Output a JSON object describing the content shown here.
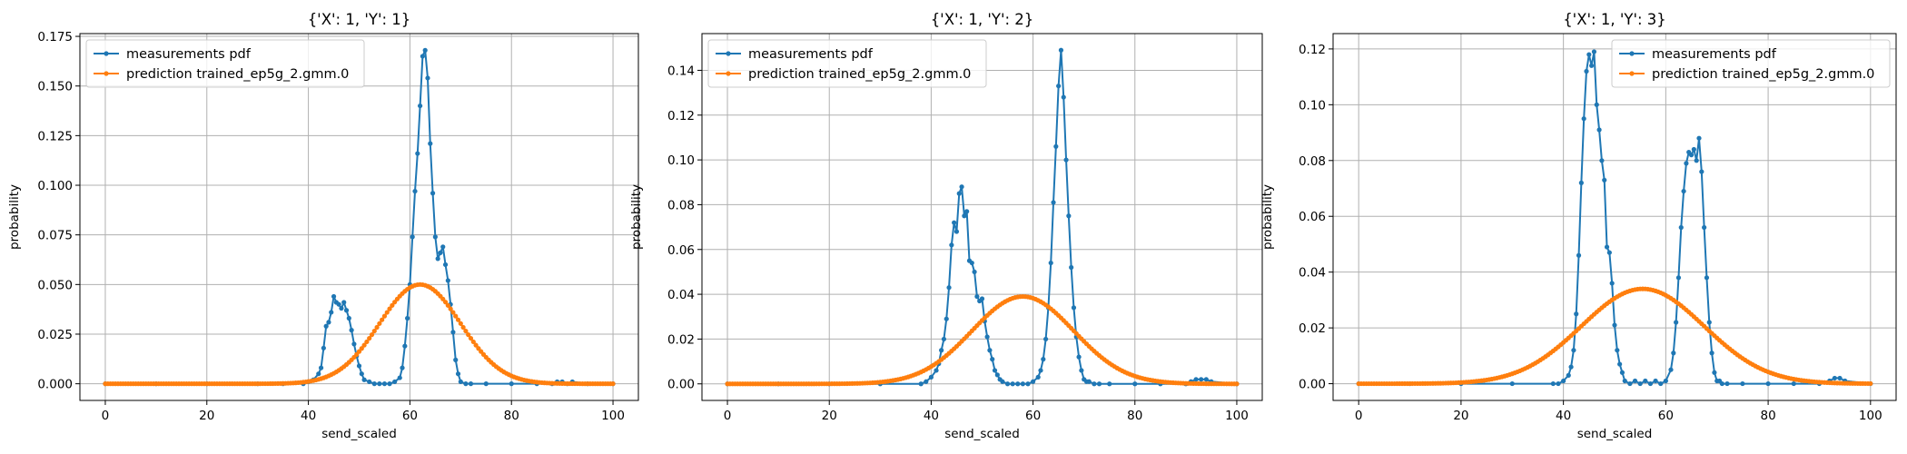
{
  "colors": {
    "measurements": "#1f77b4",
    "prediction": "#ff7f0e",
    "grid": "#b0b0b0"
  },
  "chart_data": [
    {
      "type": "line",
      "title": "{'X': 1, 'Y': 1}",
      "xlabel": "send_scaled",
      "ylabel": "probability",
      "xlim": [
        -5,
        105
      ],
      "ylim": [
        -0.0084,
        0.1764
      ],
      "xticks": [
        0,
        20,
        40,
        60,
        80,
        100
      ],
      "xtick_labels": [
        "0",
        "20",
        "40",
        "60",
        "80",
        "100"
      ],
      "yticks": [
        0,
        0.025,
        0.05,
        0.075,
        0.1,
        0.125,
        0.15,
        0.175
      ],
      "ytick_labels": [
        "0.000",
        "0.025",
        "0.050",
        "0.075",
        "0.100",
        "0.125",
        "0.150",
        "0.175"
      ],
      "grid": true,
      "legend_position": "top-left",
      "legend": [
        "measurements pdf",
        "prediction trained_ep5g_2.gmm.0"
      ],
      "series": [
        {
          "name": "measurements pdf",
          "color": "#1f77b4",
          "marker": "circle",
          "x": [
            0,
            10,
            20,
            30,
            35,
            39,
            40,
            41,
            42,
            42.5,
            43,
            43.5,
            44,
            44.5,
            45,
            45.5,
            46,
            46.5,
            47,
            47.5,
            48,
            48.5,
            49,
            49.5,
            50,
            50.5,
            51,
            52,
            53,
            54,
            55,
            56,
            57,
            58,
            58.5,
            59,
            59.5,
            60,
            60.5,
            61,
            61.5,
            62,
            62.5,
            63,
            63.5,
            64,
            64.5,
            65,
            65.5,
            66,
            66.5,
            67,
            67.5,
            68,
            68.5,
            69,
            69.5,
            70,
            71,
            72,
            75,
            80,
            85,
            88,
            89,
            90,
            91,
            92,
            95,
            100
          ],
          "y": [
            0,
            0,
            0,
            0,
            0,
            0,
            0.001,
            0.002,
            0.005,
            0.008,
            0.018,
            0.029,
            0.031,
            0.036,
            0.044,
            0.041,
            0.04,
            0.038,
            0.041,
            0.037,
            0.033,
            0.027,
            0.02,
            0.014,
            0.009,
            0.005,
            0.002,
            0.001,
            0,
            0,
            0,
            0,
            0.001,
            0.003,
            0.008,
            0.019,
            0.033,
            0.05,
            0.074,
            0.097,
            0.116,
            0.14,
            0.165,
            0.168,
            0.154,
            0.121,
            0.096,
            0.074,
            0.063,
            0.066,
            0.069,
            0.06,
            0.052,
            0.04,
            0.026,
            0.012,
            0.005,
            0.001,
            0,
            0,
            0,
            0,
            0,
            0,
            0.001,
            0.001,
            0,
            0.001,
            0,
            0
          ]
        },
        {
          "name": "prediction trained_ep5g_2.gmm.0",
          "color": "#ff7f0e",
          "marker": "circle",
          "gaussian": {
            "mean": 62,
            "sd": 8,
            "peak": 0.05,
            "x_start": 0,
            "x_end": 100,
            "x_step": 0.5
          }
        }
      ]
    },
    {
      "type": "line",
      "title": "{'X': 1, 'Y': 2}",
      "xlabel": "send_scaled",
      "ylabel": "probability",
      "xlim": [
        -5,
        105
      ],
      "ylim": [
        -0.0074,
        0.1564
      ],
      "xticks": [
        0,
        20,
        40,
        60,
        80,
        100
      ],
      "xtick_labels": [
        "0",
        "20",
        "40",
        "60",
        "80",
        "100"
      ],
      "yticks": [
        0,
        0.02,
        0.04,
        0.06,
        0.08,
        0.1,
        0.12,
        0.14
      ],
      "ytick_labels": [
        "0.00",
        "0.02",
        "0.04",
        "0.06",
        "0.08",
        "0.10",
        "0.12",
        "0.14"
      ],
      "grid": true,
      "legend_position": "top-left",
      "legend": [
        "measurements pdf",
        "prediction trained_ep5g_2.gmm.0"
      ],
      "series": [
        {
          "name": "measurements pdf",
          "color": "#1f77b4",
          "marker": "circle",
          "x": [
            0,
            10,
            20,
            30,
            38,
            39,
            40,
            41,
            41.5,
            42,
            42.5,
            43,
            43.5,
            44,
            44.5,
            45,
            45.5,
            46,
            46.5,
            47,
            47.5,
            48,
            48.5,
            49,
            49.5,
            50,
            50.5,
            51,
            51.5,
            52,
            52.5,
            53,
            53.5,
            54,
            55,
            56,
            57,
            58,
            59,
            60,
            61,
            61.5,
            62,
            62.5,
            63,
            63.5,
            64,
            64.5,
            65,
            65.5,
            66,
            66.5,
            67,
            67.5,
            68,
            68.5,
            69,
            69.5,
            70,
            70.5,
            71,
            72,
            73,
            75,
            80,
            85,
            90,
            91,
            92,
            93,
            94,
            95,
            100
          ],
          "y": [
            0,
            0,
            0,
            0,
            0,
            0.001,
            0.003,
            0.006,
            0.009,
            0.015,
            0.02,
            0.029,
            0.043,
            0.062,
            0.072,
            0.068,
            0.085,
            0.088,
            0.075,
            0.077,
            0.055,
            0.054,
            0.05,
            0.039,
            0.037,
            0.038,
            0.028,
            0.021,
            0.015,
            0.011,
            0.006,
            0.004,
            0.002,
            0.001,
            0,
            0,
            0,
            0,
            0,
            0.001,
            0.003,
            0.006,
            0.011,
            0.02,
            0.034,
            0.054,
            0.081,
            0.106,
            0.133,
            0.149,
            0.128,
            0.1,
            0.075,
            0.052,
            0.034,
            0.021,
            0.012,
            0.006,
            0.002,
            0.001,
            0.001,
            0,
            0,
            0,
            0,
            0,
            0,
            0.001,
            0.002,
            0.002,
            0.002,
            0.001,
            0
          ]
        },
        {
          "name": "prediction trained_ep5g_2.gmm.0",
          "color": "#ff7f0e",
          "marker": "circle",
          "gaussian": {
            "mean": 58,
            "sd": 10,
            "peak": 0.039,
            "x_start": 0,
            "x_end": 100,
            "x_step": 0.5
          }
        }
      ]
    },
    {
      "type": "line",
      "title": "{'X': 1, 'Y': 3}",
      "xlabel": "send_scaled",
      "ylabel": "probability",
      "xlim": [
        -5,
        105
      ],
      "ylim": [
        -0.006,
        0.1255
      ],
      "xticks": [
        0,
        20,
        40,
        60,
        80,
        100
      ],
      "xtick_labels": [
        "0",
        "20",
        "40",
        "60",
        "80",
        "100"
      ],
      "yticks": [
        0,
        0.02,
        0.04,
        0.06,
        0.08,
        0.1,
        0.12
      ],
      "ytick_labels": [
        "0.00",
        "0.02",
        "0.04",
        "0.06",
        "0.08",
        "0.10",
        "0.12"
      ],
      "grid": true,
      "legend_position": "top-right",
      "legend": [
        "measurements pdf",
        "prediction trained_ep5g_2.gmm.0"
      ],
      "series": [
        {
          "name": "measurements pdf",
          "color": "#1f77b4",
          "marker": "circle",
          "x": [
            0,
            10,
            20,
            30,
            38,
            39,
            40,
            41,
            41.5,
            42,
            42.5,
            43,
            43.5,
            44,
            44.5,
            45,
            45.5,
            46,
            46.5,
            47,
            47.5,
            48,
            48.5,
            49,
            49.5,
            50,
            50.5,
            51,
            51.5,
            52,
            53,
            54,
            55,
            56,
            57,
            58,
            59,
            60,
            61,
            61.5,
            62,
            62.5,
            63,
            63.5,
            64,
            64.5,
            65,
            65.5,
            66,
            66.5,
            67,
            67.5,
            68,
            68.5,
            69,
            69.5,
            70,
            70.5,
            71,
            72,
            75,
            80,
            85,
            90,
            92,
            93,
            94,
            95,
            100
          ],
          "y": [
            0,
            0,
            0,
            0,
            0,
            0,
            0.001,
            0.003,
            0.006,
            0.012,
            0.025,
            0.046,
            0.072,
            0.095,
            0.112,
            0.118,
            0.114,
            0.119,
            0.1,
            0.091,
            0.08,
            0.073,
            0.049,
            0.047,
            0.036,
            0.021,
            0.012,
            0.007,
            0.004,
            0.001,
            0,
            0.001,
            0,
            0.001,
            0,
            0.001,
            0,
            0.001,
            0.005,
            0.011,
            0.022,
            0.038,
            0.056,
            0.069,
            0.079,
            0.083,
            0.082,
            0.084,
            0.08,
            0.088,
            0.076,
            0.056,
            0.038,
            0.022,
            0.011,
            0.004,
            0.001,
            0.001,
            0,
            0,
            0,
            0,
            0,
            0,
            0.001,
            0.002,
            0.002,
            0.001,
            0
          ]
        },
        {
          "name": "prediction trained_ep5g_2.gmm.0",
          "color": "#ff7f0e",
          "marker": "circle",
          "gaussian": {
            "mean": 55.5,
            "sd": 12,
            "peak": 0.034,
            "x_start": 0,
            "x_end": 100,
            "x_step": 0.5
          }
        }
      ]
    }
  ]
}
